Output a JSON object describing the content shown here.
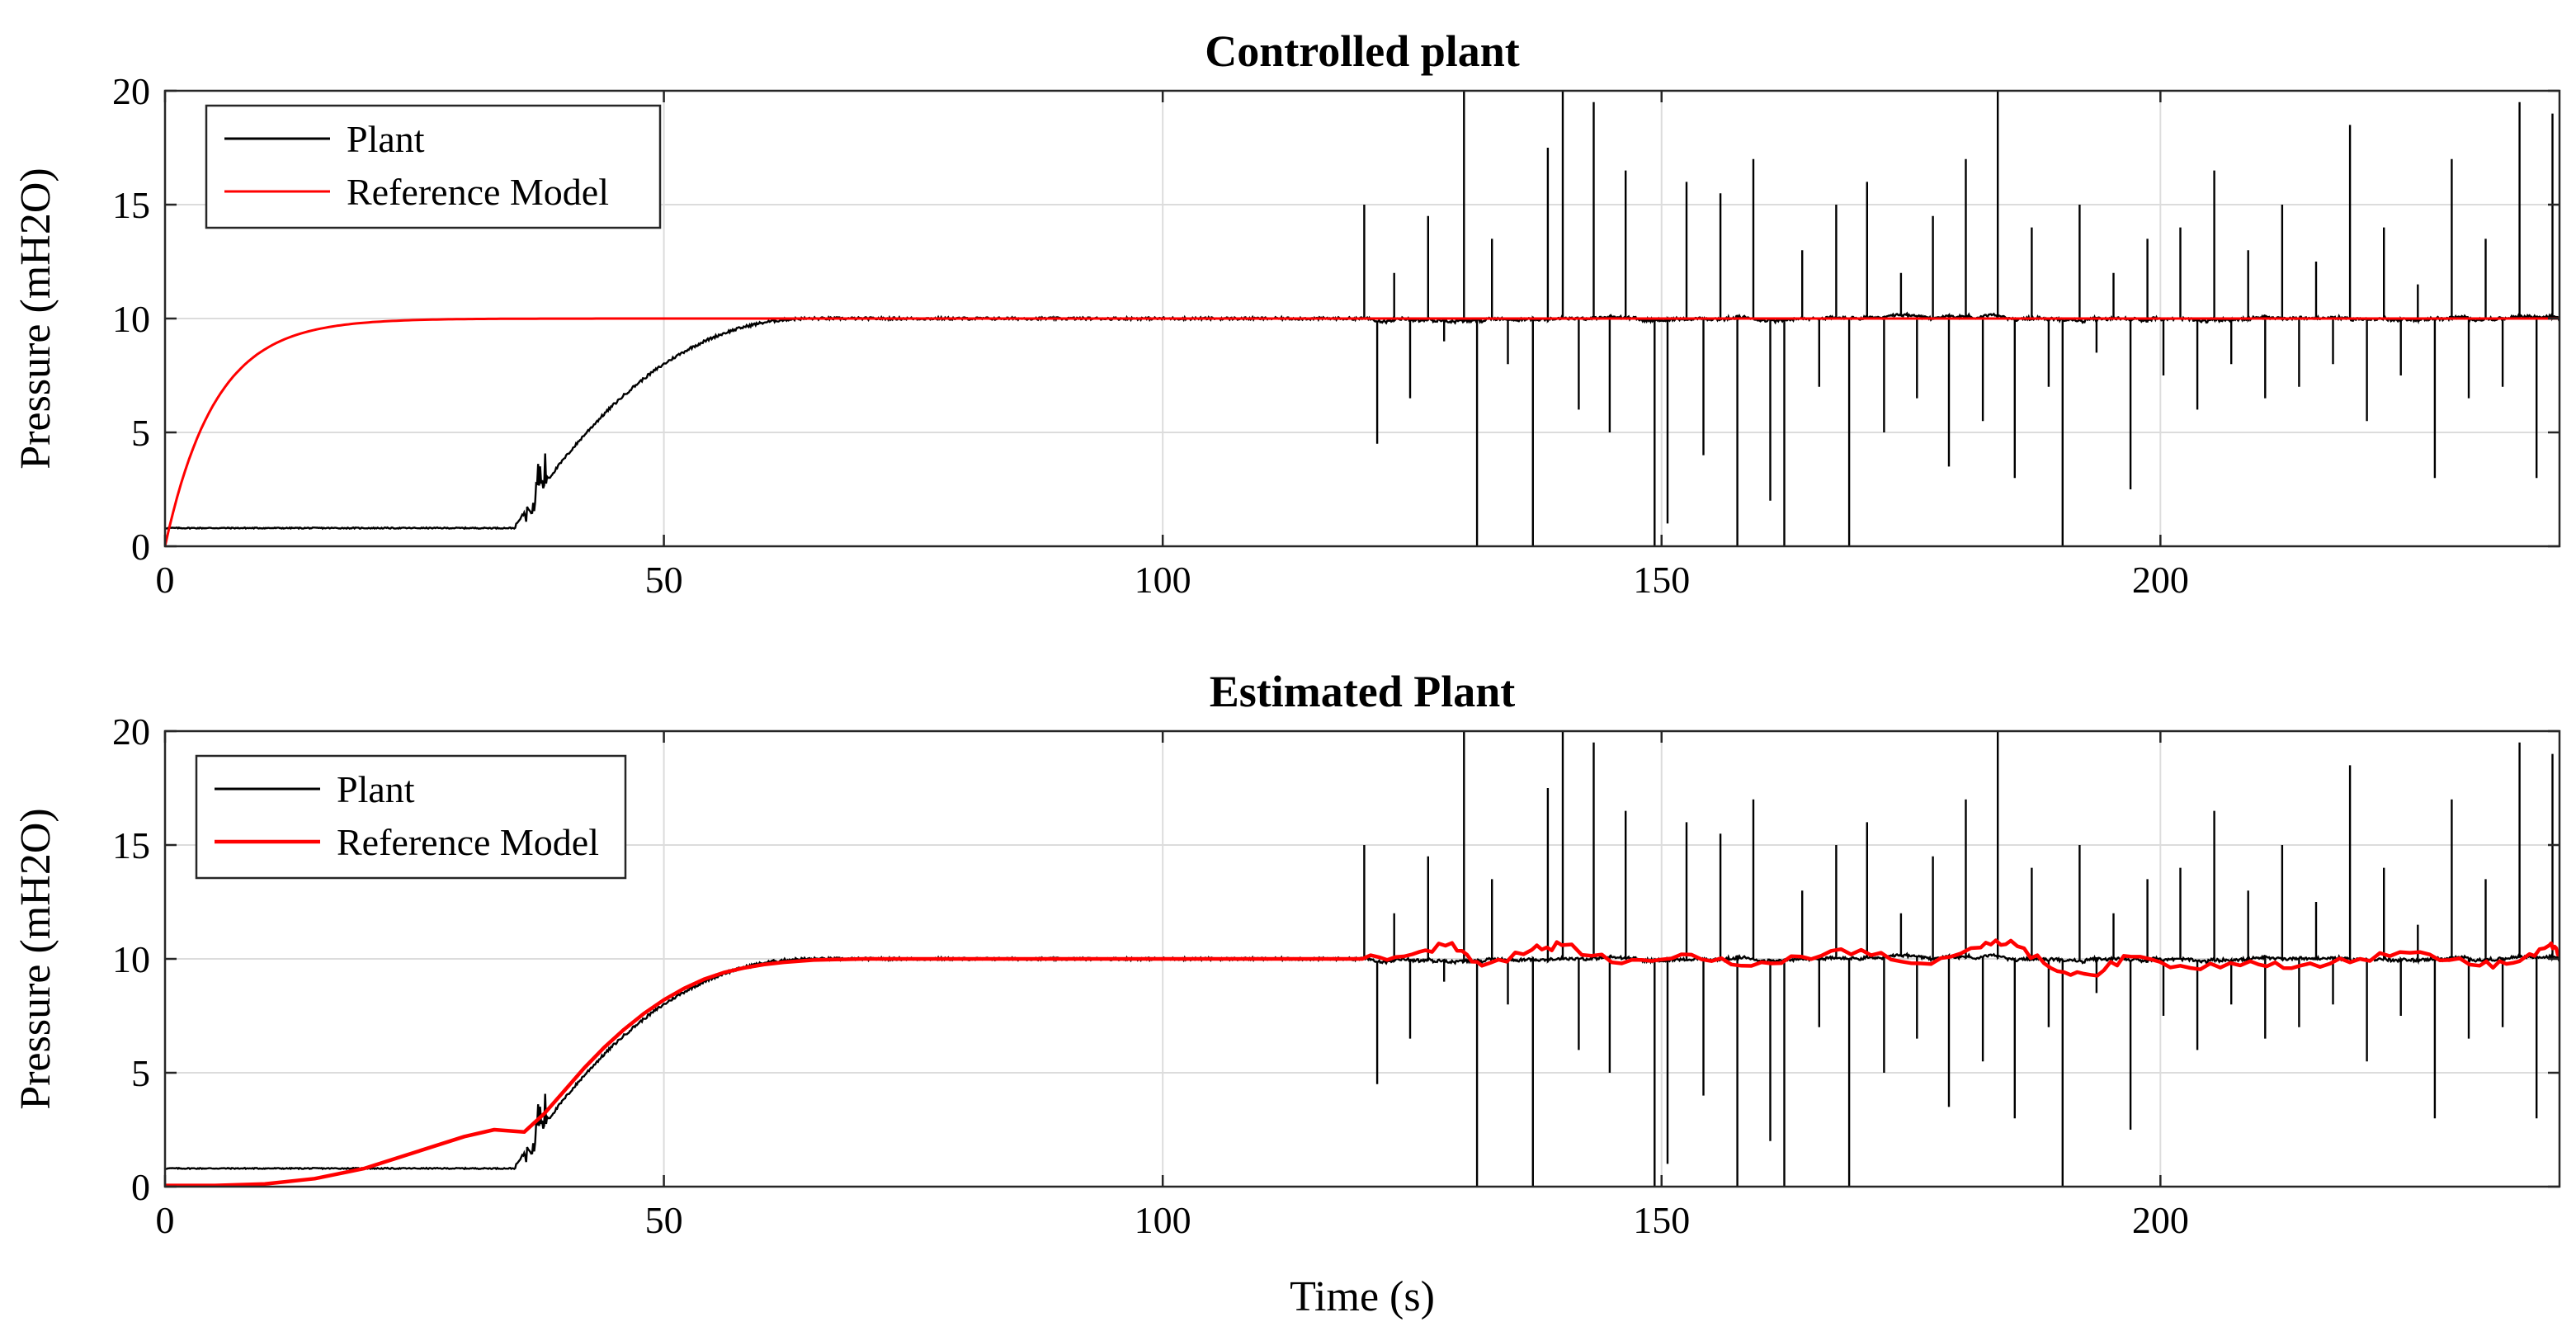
{
  "chart_data": [
    {
      "type": "line",
      "title": "Controlled plant",
      "xlabel": "",
      "ylabel": "Pressure (mH2O)",
      "xlim": [
        0,
        240
      ],
      "ylim": [
        0,
        20
      ],
      "xticks": [
        0,
        50,
        100,
        150,
        200
      ],
      "yticks": [
        0,
        5,
        10,
        15,
        20
      ],
      "grid": true,
      "legend_location": "top-left",
      "series": [
        {
          "name": "Plant",
          "color": "#000000",
          "initial_value": 0.8,
          "step_time": 35,
          "steady_value": 10,
          "settle_time": 65,
          "disturbance_start": 120,
          "spike_times": [
            120.2,
            121.5,
            123.2,
            124.8,
            126.6,
            128.2,
            130.2,
            131.5,
            133.0,
            134.6,
            137.1,
            138.6,
            140.1,
            141.7,
            143.2,
            144.8,
            146.4,
            149.3,
            150.6,
            152.5,
            154.2,
            155.9,
            157.6,
            159.2,
            160.9,
            162.3,
            164.1,
            165.8,
            167.5,
            168.8,
            170.6,
            172.3,
            174.0,
            175.6,
            177.2,
            178.8,
            180.5,
            182.2,
            183.7,
            185.4,
            187.1,
            188.8,
            190.2,
            191.9,
            193.6,
            195.3,
            197.0,
            198.7,
            200.3,
            202.0,
            203.7,
            205.4,
            207.1,
            208.8,
            210.5,
            212.2,
            213.9,
            215.6,
            217.3,
            219.0,
            220.7,
            222.4,
            224.1,
            225.8,
            227.5,
            229.2,
            230.9,
            232.6,
            234.3,
            236.0,
            237.7,
            239.3
          ],
          "spike_values": [
            15.0,
            4.5,
            12.0,
            6.5,
            14.5,
            9.0,
            20.0,
            0.0,
            13.5,
            8.0,
            0.0,
            17.5,
            20.0,
            6.0,
            19.5,
            5.0,
            16.5,
            0.0,
            1.0,
            16.0,
            4.0,
            15.5,
            0.0,
            17.0,
            2.0,
            0.0,
            13.0,
            7.0,
            15.0,
            0.0,
            16.0,
            5.0,
            12.0,
            6.5,
            14.5,
            3.5,
            17.0,
            5.5,
            20.0,
            3.0,
            14.0,
            7.0,
            0.0,
            15.0,
            8.5,
            12.0,
            2.5,
            13.5,
            7.5,
            14.0,
            6.0,
            16.5,
            8.0,
            13.0,
            6.5,
            15.0,
            7.0,
            12.5,
            8.0,
            18.5,
            5.5,
            14.0,
            7.5,
            11.5,
            3.0,
            17.0,
            6.5,
            13.5,
            7.0,
            19.5,
            3.0,
            19.0
          ]
        },
        {
          "name": "Reference Model",
          "color": "#ff0000",
          "initial_value": 0,
          "steady_value": 10,
          "time_constant": 5
        }
      ]
    },
    {
      "type": "line",
      "title": "Estimated Plant",
      "xlabel": "Time (s)",
      "ylabel": "Pressure (mH2O)",
      "xlim": [
        0,
        240
      ],
      "ylim": [
        0,
        20
      ],
      "xticks": [
        0,
        50,
        100,
        150,
        200
      ],
      "yticks": [
        0,
        5,
        10,
        15,
        20
      ],
      "grid": true,
      "legend_location": "top-left",
      "series": [
        {
          "name": "Plant",
          "color": "#000000",
          "initial_value": 0.8,
          "step_time": 35,
          "steady_value": 10,
          "settle_time": 65,
          "disturbance_start": 120,
          "spike_times": [
            120.2,
            121.5,
            123.2,
            124.8,
            126.6,
            128.2,
            130.2,
            131.5,
            133.0,
            134.6,
            137.1,
            138.6,
            140.1,
            141.7,
            143.2,
            144.8,
            146.4,
            149.3,
            150.6,
            152.5,
            154.2,
            155.9,
            157.6,
            159.2,
            160.9,
            162.3,
            164.1,
            165.8,
            167.5,
            168.8,
            170.6,
            172.3,
            174.0,
            175.6,
            177.2,
            178.8,
            180.5,
            182.2,
            183.7,
            185.4,
            187.1,
            188.8,
            190.2,
            191.9,
            193.6,
            195.3,
            197.0,
            198.7,
            200.3,
            202.0,
            203.7,
            205.4,
            207.1,
            208.8,
            210.5,
            212.2,
            213.9,
            215.6,
            217.3,
            219.0,
            220.7,
            222.4,
            224.1,
            225.8,
            227.5,
            229.2,
            230.9,
            232.6,
            234.3,
            236.0,
            237.7,
            239.3
          ],
          "spike_values": [
            15.0,
            4.5,
            12.0,
            6.5,
            14.5,
            9.0,
            20.0,
            0.0,
            13.5,
            8.0,
            0.0,
            17.5,
            20.0,
            6.0,
            19.5,
            5.0,
            16.5,
            0.0,
            1.0,
            16.0,
            4.0,
            15.5,
            0.0,
            17.0,
            2.0,
            0.0,
            13.0,
            7.0,
            15.0,
            0.0,
            16.0,
            5.0,
            12.0,
            6.5,
            14.5,
            3.5,
            17.0,
            5.5,
            20.0,
            3.0,
            14.0,
            7.0,
            0.0,
            15.0,
            8.5,
            12.0,
            2.5,
            13.5,
            7.5,
            14.0,
            6.0,
            16.5,
            8.0,
            13.0,
            6.5,
            15.0,
            7.0,
            12.5,
            8.0,
            18.5,
            5.5,
            14.0,
            7.5,
            11.5,
            3.0,
            17.0,
            6.5,
            13.5,
            7.0,
            19.5,
            3.0,
            19.0
          ]
        },
        {
          "name": "Reference Model",
          "color": "#ff0000",
          "x": [
            0,
            5,
            10,
            15,
            20,
            25,
            30,
            33,
            36,
            38,
            40,
            42,
            44,
            46,
            48,
            50,
            52,
            54,
            56,
            58,
            60,
            62,
            65,
            70,
            80,
            100,
            120,
            125,
            129,
            132,
            137,
            140,
            146,
            152,
            158,
            164,
            170,
            176,
            182,
            185,
            189,
            193,
            197,
            203,
            209,
            214,
            220,
            226,
            232,
            236,
            239,
            240
          ],
          "y": [
            0.05,
            0.05,
            0.12,
            0.35,
            0.8,
            1.5,
            2.2,
            2.5,
            2.4,
            3.2,
            4.2,
            5.2,
            6.1,
            6.9,
            7.6,
            8.2,
            8.7,
            9.1,
            9.4,
            9.6,
            9.75,
            9.85,
            9.95,
            10.0,
            10.0,
            10.0,
            10.0,
            10.2,
            10.7,
            9.7,
            10.4,
            10.6,
            9.8,
            10.2,
            9.7,
            10.1,
            10.4,
            9.8,
            10.5,
            10.8,
            9.6,
            9.3,
            10.1,
            9.6,
            9.9,
            9.7,
            10.0,
            10.3,
            9.7,
            9.9,
            10.6,
            10.2
          ]
        }
      ]
    }
  ]
}
